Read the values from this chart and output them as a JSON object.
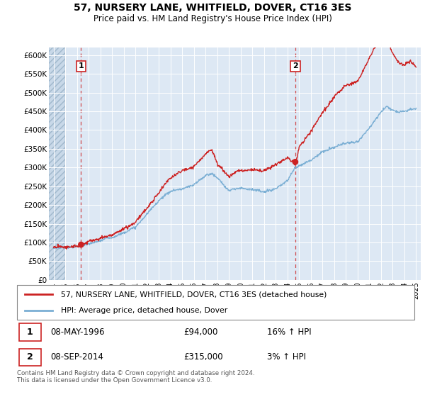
{
  "title": "57, NURSERY LANE, WHITFIELD, DOVER, CT16 3ES",
  "subtitle": "Price paid vs. HM Land Registry's House Price Index (HPI)",
  "ylim": [
    0,
    620000
  ],
  "yticks": [
    0,
    50000,
    100000,
    150000,
    200000,
    250000,
    300000,
    350000,
    400000,
    450000,
    500000,
    550000,
    600000
  ],
  "ytick_labels": [
    "£0",
    "£50K",
    "£100K",
    "£150K",
    "£200K",
    "£250K",
    "£300K",
    "£350K",
    "£400K",
    "£450K",
    "£500K",
    "£550K",
    "£600K"
  ],
  "xlim_start": 1993.6,
  "xlim_end": 2025.4,
  "sale1_year": 1996.35,
  "sale1_price": 94000,
  "sale2_year": 2014.67,
  "sale2_price": 315000,
  "legend_line1": "57, NURSERY LANE, WHITFIELD, DOVER, CT16 3ES (detached house)",
  "legend_line2": "HPI: Average price, detached house, Dover",
  "table_row1_label": "1",
  "table_row1_date": "08-MAY-1996",
  "table_row1_price": "£94,000",
  "table_row1_hpi": "16% ↑ HPI",
  "table_row2_label": "2",
  "table_row2_date": "08-SEP-2014",
  "table_row2_price": "£315,000",
  "table_row2_hpi": "3% ↑ HPI",
  "footer": "Contains HM Land Registry data © Crown copyright and database right 2024.\nThis data is licensed under the Open Government Licence v3.0.",
  "line_color_red": "#cc2222",
  "line_color_blue": "#7bafd4",
  "dot_color": "#cc2222",
  "plot_bg": "#dde8f4",
  "hatch_bg": "#c8d8e8"
}
